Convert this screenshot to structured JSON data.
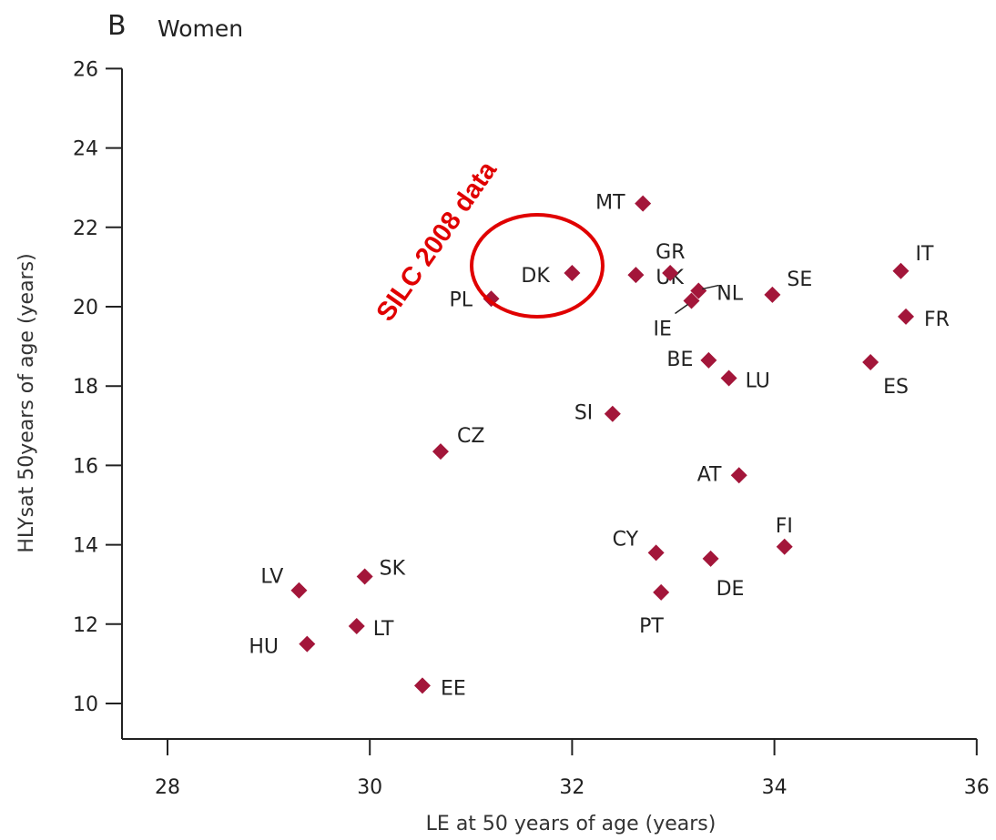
{
  "panel": {
    "letter": "B",
    "title": "Women"
  },
  "chart_data": {
    "type": "scatter",
    "title": "Women",
    "xlabel": "LE at 50 years of age (years)",
    "ylabel": "HLYsat 50years of age (years)",
    "xlim": [
      27.6,
      36
    ],
    "ylim": [
      9.1,
      26
    ],
    "x_ticks": [
      28,
      30,
      32,
      34,
      36
    ],
    "y_ticks": [
      10,
      12,
      14,
      16,
      18,
      20,
      22,
      24,
      26
    ],
    "grid": false,
    "marker": "diamond",
    "marker_color": "#a3163a",
    "points": [
      {
        "label": "MT",
        "x": 32.7,
        "y": 22.6
      },
      {
        "label": "DK",
        "x": 32.0,
        "y": 20.85
      },
      {
        "label": "UK",
        "x": 32.63,
        "y": 20.8
      },
      {
        "label": "GR",
        "x": 32.97,
        "y": 20.85
      },
      {
        "label": "NL",
        "x": 33.25,
        "y": 20.4
      },
      {
        "label": "IE",
        "x": 33.18,
        "y": 20.15
      },
      {
        "label": "SE",
        "x": 33.98,
        "y": 20.3
      },
      {
        "label": "IT",
        "x": 35.25,
        "y": 20.9
      },
      {
        "label": "FR",
        "x": 35.3,
        "y": 19.75
      },
      {
        "label": "PL",
        "x": 31.2,
        "y": 20.2
      },
      {
        "label": "BE",
        "x": 33.35,
        "y": 18.65
      },
      {
        "label": "LU",
        "x": 33.55,
        "y": 18.2
      },
      {
        "label": "ES",
        "x": 34.95,
        "y": 18.6
      },
      {
        "label": "SI",
        "x": 32.4,
        "y": 17.3
      },
      {
        "label": "CZ",
        "x": 30.7,
        "y": 16.35
      },
      {
        "label": "AT",
        "x": 33.65,
        "y": 15.75
      },
      {
        "label": "FI",
        "x": 34.1,
        "y": 13.95
      },
      {
        "label": "CY",
        "x": 32.83,
        "y": 13.8
      },
      {
        "label": "DE",
        "x": 33.37,
        "y": 13.65
      },
      {
        "label": "PT",
        "x": 32.88,
        "y": 12.8
      },
      {
        "label": "LV",
        "x": 29.3,
        "y": 12.85
      },
      {
        "label": "SK",
        "x": 29.95,
        "y": 13.2
      },
      {
        "label": "LT",
        "x": 29.87,
        "y": 11.95
      },
      {
        "label": "HU",
        "x": 29.38,
        "y": 11.5
      },
      {
        "label": "EE",
        "x": 30.52,
        "y": 10.45
      }
    ],
    "annotation": {
      "text": "SILC 2008 data",
      "color": "#e00000"
    }
  }
}
